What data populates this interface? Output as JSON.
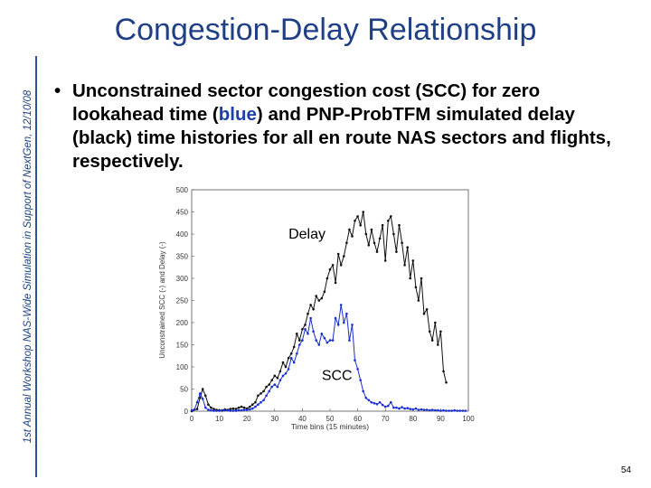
{
  "slide": {
    "title": "Congestion-Delay Relationship",
    "side_caption": "1st Annual Workshop NAS-Wide Simulation in Support of NextGen, 12/10/08",
    "bullet": {
      "part1": "Unconstrained sector congestion cost (SCC) for zero lookahead time (",
      "blue_word": "blue",
      "part2": ") and PNP-ProbTFM simulated delay (black) time histories for all en route NAS sectors and flights, respectively."
    },
    "page_number": "54",
    "colors": {
      "title": "#1f3f86",
      "scc": "#1a2fd1",
      "delay": "#111111"
    }
  },
  "chart_data": {
    "type": "line",
    "xlabel": "Time bins (15 minutes)",
    "ylabel": "Unconstrained SCC (-) and Delay (-)",
    "xlim": [
      0,
      100
    ],
    "ylim": [
      0,
      500
    ],
    "xticks": [
      0,
      10,
      20,
      30,
      40,
      50,
      60,
      70,
      80,
      90,
      100
    ],
    "yticks": [
      0,
      50,
      100,
      150,
      200,
      250,
      300,
      350,
      400,
      450,
      500
    ],
    "annotations": [
      {
        "text": "Delay",
        "x": 35,
        "y": 390
      },
      {
        "text": "SCC",
        "x": 47,
        "y": 70
      }
    ],
    "series": [
      {
        "name": "Delay",
        "color": "#111111",
        "x": [
          0,
          2,
          3,
          4,
          5,
          6,
          7,
          8,
          9,
          10,
          11,
          12,
          13,
          14,
          15,
          16,
          17,
          18,
          19,
          20,
          21,
          22,
          23,
          24,
          25,
          26,
          27,
          28,
          29,
          30,
          31,
          32,
          33,
          34,
          35,
          36,
          37,
          38,
          39,
          40,
          41,
          42,
          43,
          44,
          45,
          46,
          47,
          48,
          49,
          50,
          51,
          52,
          53,
          54,
          55,
          56,
          57,
          58,
          59,
          60,
          61,
          62,
          63,
          64,
          65,
          66,
          67,
          68,
          69,
          70,
          71,
          72,
          73,
          74,
          75,
          76,
          77,
          78,
          79,
          80,
          81,
          82,
          83,
          84,
          85,
          86,
          87,
          88,
          89,
          90,
          91,
          92
        ],
        "values": [
          0,
          5,
          30,
          50,
          35,
          15,
          8,
          5,
          3,
          2,
          2,
          4,
          3,
          5,
          6,
          5,
          8,
          10,
          8,
          6,
          10,
          15,
          20,
          35,
          40,
          45,
          55,
          60,
          70,
          80,
          75,
          90,
          110,
          100,
          120,
          130,
          145,
          175,
          160,
          185,
          195,
          220,
          240,
          230,
          260,
          250,
          255,
          270,
          300,
          320,
          330,
          290,
          355,
          330,
          350,
          380,
          410,
          395,
          430,
          440,
          420,
          450,
          400,
          375,
          410,
          380,
          360,
          390,
          420,
          340,
          430,
          440,
          400,
          360,
          420,
          380,
          330,
          370,
          300,
          340,
          280,
          250,
          300,
          220,
          230,
          180,
          160,
          200,
          150,
          180,
          90,
          65
        ]
      },
      {
        "name": "SCC",
        "color": "#1a2fd1",
        "x": [
          0,
          1,
          2,
          3,
          4,
          5,
          6,
          7,
          8,
          9,
          10,
          11,
          12,
          13,
          14,
          15,
          16,
          17,
          18,
          19,
          20,
          21,
          22,
          23,
          24,
          25,
          26,
          27,
          28,
          29,
          30,
          31,
          32,
          33,
          34,
          35,
          36,
          37,
          38,
          39,
          40,
          41,
          42,
          43,
          44,
          45,
          46,
          47,
          48,
          49,
          50,
          51,
          52,
          53,
          54,
          55,
          56,
          57,
          58,
          59,
          60,
          61,
          62,
          63,
          64,
          65,
          66,
          67,
          68,
          69,
          70,
          71,
          72,
          73,
          74,
          75,
          76,
          77,
          78,
          79,
          80,
          81,
          82,
          83,
          84,
          85,
          86,
          87,
          88,
          89,
          90,
          91,
          92,
          93,
          94,
          95,
          96,
          97,
          98,
          99
        ],
        "values": [
          2,
          4,
          20,
          40,
          28,
          8,
          3,
          2,
          1,
          1,
          1,
          1,
          2,
          2,
          1,
          1,
          1,
          2,
          2,
          3,
          3,
          4,
          6,
          10,
          15,
          20,
          25,
          35,
          45,
          55,
          60,
          55,
          70,
          80,
          85,
          95,
          120,
          110,
          130,
          150,
          160,
          185,
          175,
          210,
          180,
          160,
          150,
          175,
          165,
          155,
          160,
          160,
          210,
          195,
          240,
          200,
          220,
          160,
          195,
          115,
          95,
          70,
          45,
          30,
          25,
          20,
          18,
          16,
          20,
          14,
          10,
          12,
          20,
          8,
          8,
          6,
          9,
          6,
          7,
          5,
          4,
          6,
          3,
          4,
          3,
          3,
          2,
          3,
          2,
          2,
          1,
          2,
          1,
          1,
          1,
          2,
          1,
          1,
          1,
          1
        ]
      }
    ]
  }
}
